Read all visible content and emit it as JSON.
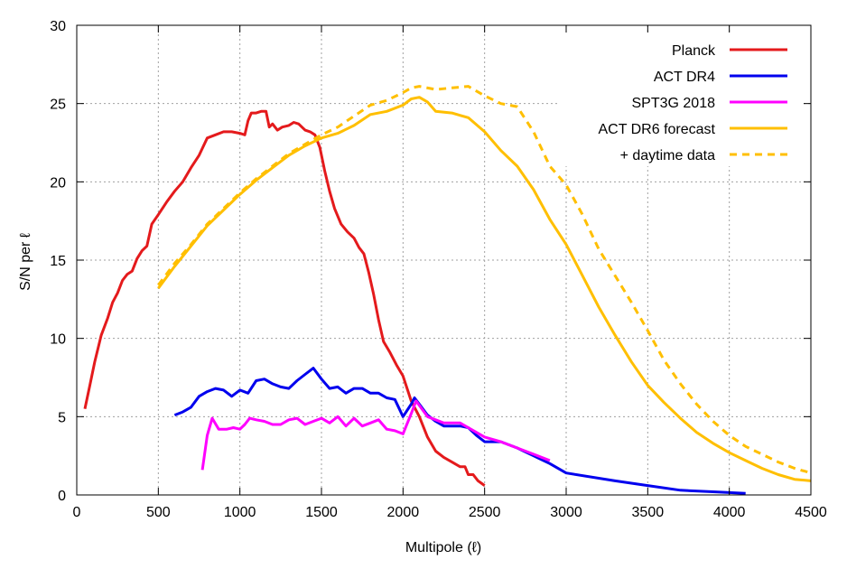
{
  "chart_data": {
    "type": "line",
    "title": "",
    "xlabel": "Multipole (ℓ)",
    "ylabel": "S/N per ℓ",
    "xlim": [
      0,
      4500
    ],
    "ylim": [
      0,
      30
    ],
    "xticks": [
      0,
      500,
      1000,
      1500,
      2000,
      2500,
      3000,
      3500,
      4000,
      4500
    ],
    "yticks": [
      0,
      5,
      10,
      15,
      20,
      25,
      30
    ],
    "xtick_labels": [
      "0",
      "500",
      "1000",
      "1500",
      "2000",
      "2500",
      "3000",
      "3500",
      "4000",
      "4500"
    ],
    "ytick_labels": [
      "0",
      "5",
      "10",
      "15",
      "20",
      "25",
      "30"
    ],
    "grid": true,
    "grid_style": "dashed",
    "legend_position": "top-right",
    "series": [
      {
        "name": "Planck",
        "color": "#e41a1c",
        "dash": false,
        "x": [
          50,
          80,
          110,
          150,
          190,
          220,
          250,
          280,
          310,
          340,
          370,
          400,
          430,
          460,
          500,
          550,
          600,
          650,
          700,
          750,
          800,
          850,
          900,
          950,
          1000,
          1030,
          1050,
          1070,
          1100,
          1130,
          1160,
          1180,
          1200,
          1230,
          1260,
          1300,
          1330,
          1360,
          1400,
          1430,
          1460,
          1490,
          1520,
          1550,
          1580,
          1620,
          1660,
          1700,
          1730,
          1760,
          1790,
          1820,
          1850,
          1880,
          1920,
          1960,
          2000,
          2050,
          2100,
          2150,
          2200,
          2250,
          2300,
          2350,
          2380,
          2400,
          2430,
          2460,
          2500
        ],
        "y": [
          5.5,
          7.0,
          8.5,
          10.2,
          11.3,
          12.3,
          12.9,
          13.7,
          14.1,
          14.3,
          15.1,
          15.6,
          15.9,
          17.3,
          17.9,
          18.7,
          19.4,
          20.0,
          20.9,
          21.7,
          22.8,
          23.0,
          23.2,
          23.2,
          23.1,
          23.0,
          23.9,
          24.4,
          24.4,
          24.5,
          24.5,
          23.5,
          23.7,
          23.3,
          23.5,
          23.6,
          23.8,
          23.7,
          23.3,
          23.2,
          23.0,
          22.2,
          20.7,
          19.4,
          18.3,
          17.3,
          16.8,
          16.4,
          15.8,
          15.4,
          14.2,
          12.8,
          11.2,
          9.8,
          9.1,
          8.3,
          7.6,
          6.0,
          5.0,
          3.7,
          2.8,
          2.4,
          2.1,
          1.8,
          1.8,
          1.3,
          1.3,
          0.9,
          0.6
        ]
      },
      {
        "name": "ACT DR4",
        "color": "#0000ee",
        "dash": false,
        "x": [
          600,
          650,
          700,
          750,
          800,
          850,
          900,
          950,
          1000,
          1050,
          1100,
          1150,
          1200,
          1250,
          1300,
          1350,
          1400,
          1450,
          1500,
          1550,
          1600,
          1650,
          1700,
          1750,
          1800,
          1850,
          1900,
          1950,
          2000,
          2050,
          2070,
          2100,
          2150,
          2200,
          2250,
          2300,
          2350,
          2400,
          2450,
          2500,
          2600,
          2700,
          2800,
          2900,
          3000,
          3300,
          3500,
          3700,
          3900,
          4100
        ],
        "y": [
          5.1,
          5.3,
          5.6,
          6.3,
          6.6,
          6.8,
          6.7,
          6.3,
          6.7,
          6.5,
          7.3,
          7.4,
          7.1,
          6.9,
          6.8,
          7.3,
          7.7,
          8.1,
          7.4,
          6.8,
          6.9,
          6.5,
          6.8,
          6.8,
          6.5,
          6.5,
          6.2,
          6.1,
          5.0,
          5.8,
          6.2,
          5.8,
          5.1,
          4.7,
          4.4,
          4.4,
          4.4,
          4.3,
          3.8,
          3.4,
          3.4,
          3.0,
          2.5,
          2.0,
          1.4,
          0.9,
          0.6,
          0.3,
          0.2,
          0.1
        ]
      },
      {
        "name": "SPT3G 2018",
        "color": "#ff00ff",
        "dash": false,
        "x": [
          770,
          800,
          830,
          870,
          920,
          960,
          1000,
          1030,
          1060,
          1100,
          1150,
          1200,
          1250,
          1300,
          1350,
          1400,
          1450,
          1500,
          1550,
          1600,
          1650,
          1700,
          1750,
          1800,
          1850,
          1900,
          1950,
          2000,
          2050,
          2080,
          2150,
          2250,
          2300,
          2350,
          2400,
          2450,
          2500,
          2600,
          2700,
          2800,
          2900
        ],
        "y": [
          1.6,
          3.8,
          4.9,
          4.2,
          4.2,
          4.3,
          4.2,
          4.5,
          4.9,
          4.8,
          4.7,
          4.5,
          4.5,
          4.8,
          4.9,
          4.5,
          4.7,
          4.9,
          4.6,
          5.0,
          4.4,
          4.9,
          4.4,
          4.6,
          4.8,
          4.2,
          4.1,
          3.9,
          5.2,
          6.0,
          5.0,
          4.6,
          4.6,
          4.6,
          4.3,
          4.0,
          3.7,
          3.4,
          3.0,
          2.6,
          2.2
        ]
      },
      {
        "name": "ACT DR6 forecast",
        "color": "#ffbf00",
        "dash": false,
        "x": [
          500,
          600,
          700,
          800,
          900,
          1000,
          1100,
          1200,
          1300,
          1400,
          1500,
          1600,
          1700,
          1800,
          1900,
          2000,
          2050,
          2100,
          2150,
          2200,
          2300,
          2400,
          2500,
          2600,
          2700,
          2800,
          2900,
          3000,
          3100,
          3200,
          3300,
          3400,
          3500,
          3600,
          3700,
          3800,
          3900,
          4000,
          4100,
          4200,
          4300,
          4400,
          4500
        ],
        "y": [
          13.2,
          14.6,
          15.9,
          17.2,
          18.2,
          19.2,
          20.1,
          20.9,
          21.7,
          22.3,
          22.8,
          23.1,
          23.6,
          24.3,
          24.5,
          24.9,
          25.3,
          25.4,
          25.1,
          24.5,
          24.4,
          24.1,
          23.2,
          22.0,
          21.0,
          19.5,
          17.6,
          16.0,
          14.0,
          12.0,
          10.2,
          8.5,
          7.0,
          5.9,
          4.9,
          4.0,
          3.3,
          2.7,
          2.2,
          1.7,
          1.3,
          1.0,
          0.9
        ]
      },
      {
        "name": "+ daytime data",
        "color": "#ffbf00",
        "dash": true,
        "x": [
          500,
          600,
          700,
          800,
          900,
          1000,
          1100,
          1200,
          1300,
          1400,
          1500,
          1600,
          1700,
          1800,
          1900,
          2000,
          2050,
          2100,
          2200,
          2300,
          2400,
          2500,
          2600,
          2700,
          2800,
          2900,
          3000,
          3100,
          3200,
          3300,
          3400,
          3500,
          3600,
          3700,
          3800,
          3900,
          4000,
          4100,
          4200,
          4300,
          4400,
          4500
        ],
        "y": [
          13.4,
          14.8,
          16.0,
          17.3,
          18.3,
          19.3,
          20.2,
          21.0,
          21.8,
          22.4,
          23.0,
          23.5,
          24.2,
          24.9,
          25.2,
          25.7,
          26.0,
          26.1,
          25.9,
          26.0,
          26.1,
          25.5,
          25.0,
          24.8,
          23.2,
          21.0,
          19.8,
          17.9,
          15.7,
          14.0,
          12.3,
          10.5,
          8.6,
          7.1,
          5.8,
          4.7,
          3.8,
          3.1,
          2.6,
          2.1,
          1.7,
          1.4
        ]
      }
    ]
  }
}
